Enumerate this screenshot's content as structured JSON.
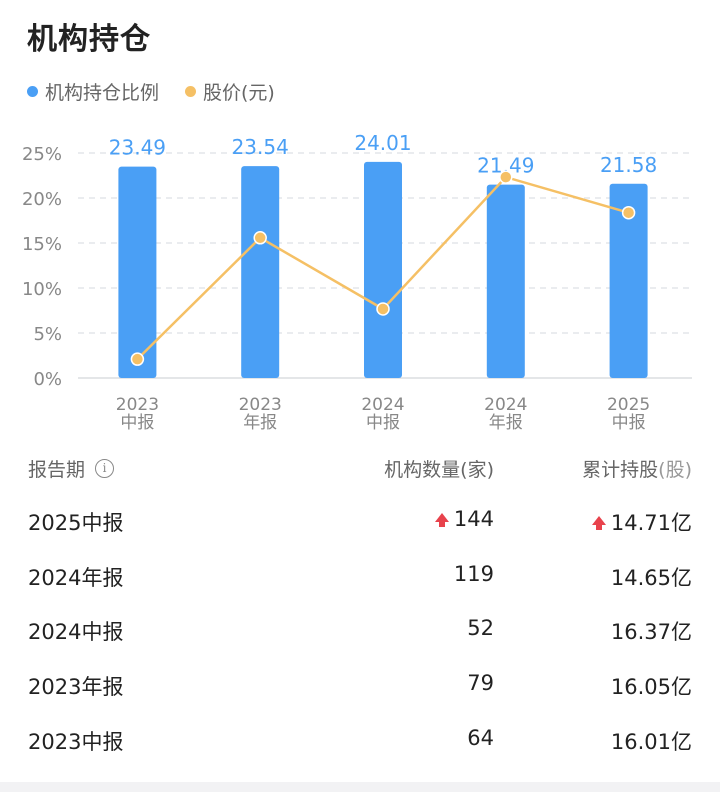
{
  "header": {
    "title": "机构持仓"
  },
  "legend": {
    "holding_label": "机构持仓比例",
    "price_label": "股价(元)"
  },
  "colors": {
    "bar": "#4a9ff5",
    "line": "#f5c065",
    "label": "#4a9ff5",
    "up": "#e8424c",
    "grid": "#e4e6ea"
  },
  "chart_data": {
    "type": "bar",
    "categories": [
      [
        "2023",
        "中报"
      ],
      [
        "2023",
        "年报"
      ],
      [
        "2024",
        "中报"
      ],
      [
        "2024",
        "年报"
      ],
      [
        "2025",
        "中报"
      ]
    ],
    "y_ticks": [
      "25%",
      "20%",
      "15%",
      "10%",
      "5%",
      "0%"
    ],
    "ylim": [
      0,
      25
    ],
    "series": [
      {
        "name": "机构持仓比例",
        "type": "bar",
        "values": [
          23.49,
          23.54,
          24.01,
          21.49,
          21.58
        ],
        "labels": [
          "23.49",
          "23.54",
          "24.01",
          "21.49",
          "21.58"
        ]
      },
      {
        "name": "股价(元)",
        "type": "line",
        "relative_level": [
          0.09,
          0.67,
          0.33,
          0.96,
          0.79
        ]
      }
    ],
    "grid": true,
    "legend_position": "top-left"
  },
  "table": {
    "headers": {
      "period": "报告期",
      "count": "机构数量(家)",
      "shares": "累计持股",
      "shares_unit": "(股)"
    },
    "info_icon": "i",
    "rows": [
      {
        "period": "2025中报",
        "count": "144",
        "shares": "14.71亿",
        "up": true
      },
      {
        "period": "2024年报",
        "count": "119",
        "shares": "14.65亿",
        "up": false
      },
      {
        "period": "2024中报",
        "count": "52",
        "shares": "16.37亿",
        "up": false
      },
      {
        "period": "2023年报",
        "count": "79",
        "shares": "16.05亿",
        "up": false
      },
      {
        "period": "2023中报",
        "count": "64",
        "shares": "16.01亿",
        "up": false
      }
    ]
  }
}
